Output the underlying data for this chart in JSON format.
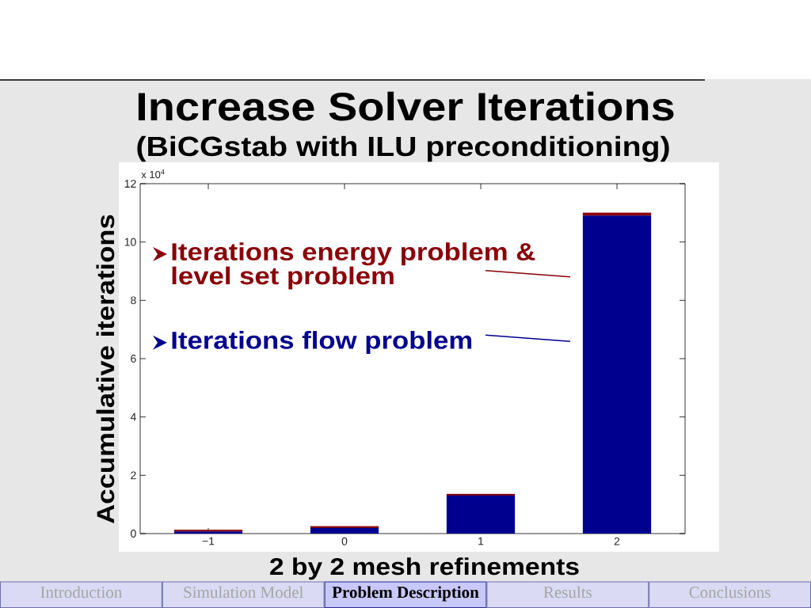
{
  "chart_data": {
    "type": "bar",
    "title": "Increase Solver Iterations",
    "subtitle": "(BiCGstab with ILU preconditioning)",
    "xlabel": "2 by 2 mesh refinements",
    "ylabel": "Accumulative iterations",
    "categories": [
      "−1",
      "0",
      "1",
      "2"
    ],
    "series": [
      {
        "name": "Iterations flow problem",
        "color": "#00008f",
        "values": [
          0.07,
          0.19,
          1.3,
          10.9
        ]
      },
      {
        "name": "Iterations energy problem & level set problem",
        "color": "#8a0008",
        "values": [
          0.06,
          0.06,
          0.06,
          0.1
        ]
      }
    ],
    "stacked": true,
    "ylim": [
      0,
      12
    ],
    "yticks": [
      0,
      2,
      4,
      6,
      8,
      10,
      12
    ],
    "legend": "top left",
    "annotations": [
      "x 10$^{4}$",
      "Introduction",
      "Simulation Model",
      "**Problem Description**",
      "Results",
      "Conclusions"
    ]
  }
}
